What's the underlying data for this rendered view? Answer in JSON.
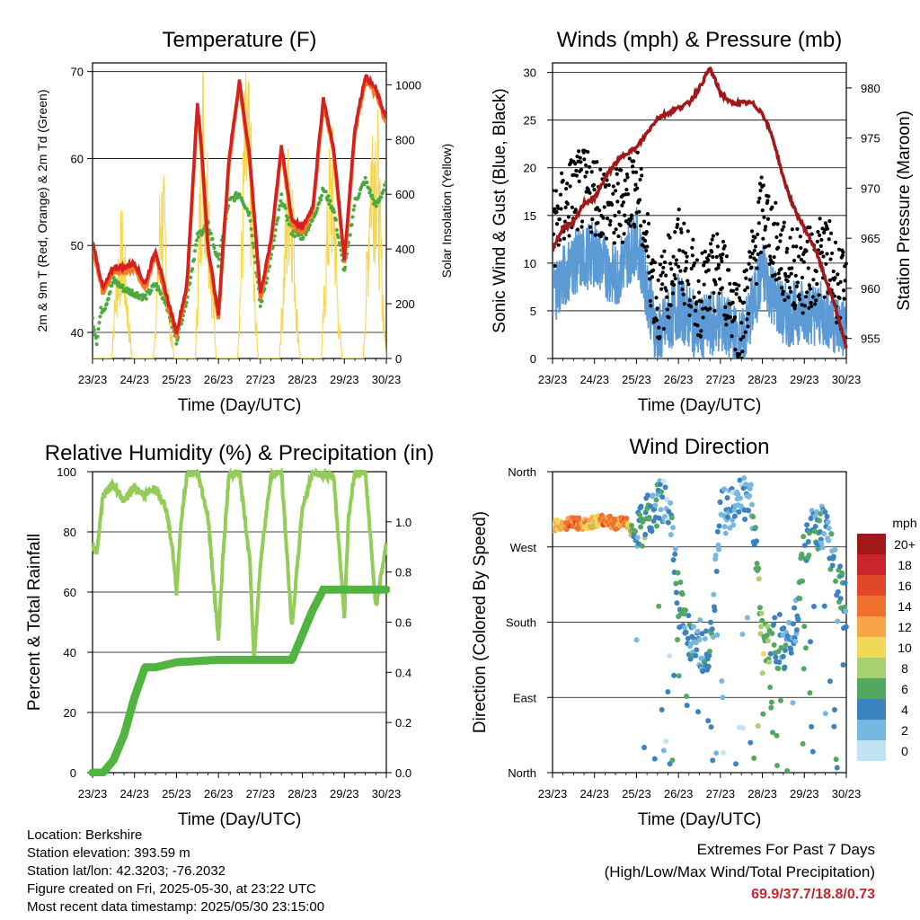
{
  "x_ticks": [
    "23/23",
    "24/23",
    "25/23",
    "26/23",
    "27/23",
    "28/23",
    "29/23",
    "30/23"
  ],
  "colors": {
    "temp2m": "#d42020",
    "temp9m": "#f07a22",
    "dewpoint": "#4aaa40",
    "solar": "#f7d64a",
    "gust": "#000000",
    "wind": "#5b9ad5",
    "pressure": "#a01818",
    "rh": "#94cc5a",
    "precip": "#52b440"
  },
  "chart_data": [
    {
      "id": "temperature",
      "type": "line",
      "title": "Temperature (F)",
      "xlabel": "Time (Day/UTC)",
      "ylabel": "2m & 9m T (Red, Orange) & 2m Td (Green)",
      "ylabel_right": "Solar Insolation (Yellow)",
      "xlim": [
        0,
        7
      ],
      "ylim": [
        37,
        71
      ],
      "ylim_right": [
        0,
        1080
      ],
      "yticks": [
        40,
        50,
        60,
        70
      ],
      "yticks_right": [
        0,
        200,
        400,
        600,
        800,
        1000
      ],
      "grid": true,
      "series": [
        {
          "name": "2m T",
          "x": [
            0,
            0.25,
            0.5,
            0.75,
            1.0,
            1.25,
            1.5,
            1.75,
            2.0,
            2.25,
            2.5,
            2.6,
            2.75,
            3.0,
            3.25,
            3.5,
            3.75,
            4.0,
            4.25,
            4.5,
            4.75,
            5.0,
            5.25,
            5.5,
            5.75,
            6.0,
            6.25,
            6.5,
            6.75,
            7.0
          ],
          "y": [
            50.5,
            45.0,
            47.5,
            47.5,
            48.0,
            45.5,
            49.5,
            44.5,
            40.0,
            45.5,
            66.5,
            61.0,
            50.0,
            42.0,
            60.0,
            69.0,
            60.0,
            44.5,
            50.5,
            61.5,
            53.0,
            52.0,
            54.5,
            67.0,
            61.0,
            48.5,
            63.5,
            69.5,
            68.0,
            64.5
          ]
        },
        {
          "name": "9m T",
          "x": [
            0,
            0.25,
            0.5,
            0.75,
            1.0,
            1.25,
            1.5,
            1.75,
            2.0,
            2.25,
            2.5,
            2.6,
            2.75,
            3.0,
            3.25,
            3.5,
            3.75,
            4.0,
            4.25,
            4.5,
            4.75,
            5.0,
            5.25,
            5.5,
            5.75,
            6.0,
            6.25,
            6.5,
            6.75,
            7.0
          ],
          "y": [
            50.0,
            44.5,
            47.0,
            47.0,
            47.5,
            45.0,
            49.0,
            44.0,
            39.5,
            45.0,
            66.0,
            60.5,
            49.5,
            41.5,
            59.5,
            68.5,
            59.5,
            44.0,
            50.0,
            61.0,
            52.5,
            51.5,
            54.0,
            66.5,
            60.5,
            48.0,
            63.0,
            69.0,
            67.5,
            64.0
          ]
        },
        {
          "name": "2m Td",
          "x": [
            0,
            0.1,
            0.2,
            0.3,
            0.5,
            0.75,
            1.0,
            1.25,
            1.5,
            1.75,
            2.0,
            2.25,
            2.5,
            2.75,
            3.0,
            3.25,
            3.5,
            3.75,
            4.0,
            4.25,
            4.5,
            4.75,
            5.0,
            5.25,
            5.5,
            5.75,
            6.0,
            6.25,
            6.5,
            6.75,
            7.0
          ],
          "y": [
            41.5,
            39.0,
            42.5,
            43.0,
            46.0,
            45.0,
            44.5,
            44.0,
            45.5,
            43.5,
            39.0,
            44.0,
            51.0,
            52.5,
            48.0,
            55.0,
            56.0,
            53.5,
            43.0,
            48.5,
            55.5,
            51.5,
            51.0,
            53.0,
            56.5,
            54.0,
            47.0,
            55.0,
            57.5,
            54.5,
            57.0
          ]
        },
        {
          "name": "Solar",
          "x": [
            0,
            0.45,
            0.55,
            0.62,
            0.7,
            0.78,
            0.85,
            0.95,
            1.45,
            1.55,
            1.62,
            1.7,
            1.78,
            1.85,
            1.95,
            2.45,
            2.55,
            2.62,
            2.7,
            2.78,
            2.85,
            2.95,
            3.45,
            3.55,
            3.62,
            3.7,
            3.78,
            3.85,
            3.95,
            4.45,
            4.55,
            4.62,
            4.7,
            4.78,
            4.85,
            4.95,
            5.45,
            5.55,
            5.62,
            5.7,
            5.78,
            5.85,
            5.95,
            6.45,
            6.55,
            6.62,
            6.7,
            6.78,
            6.85,
            6.95,
            7.0
          ],
          "y": [
            0,
            0,
            300,
            450,
            520,
            380,
            180,
            0,
            0,
            350,
            700,
            620,
            400,
            150,
            0,
            0,
            600,
            1100,
            900,
            700,
            350,
            0,
            0,
            450,
            950,
            1000,
            800,
            300,
            0,
            0,
            350,
            600,
            900,
            650,
            250,
            0,
            0,
            400,
            700,
            850,
            600,
            200,
            0,
            0,
            450,
            900,
            1000,
            950,
            600,
            150,
            0
          ]
        }
      ]
    },
    {
      "id": "winds",
      "type": "scatter",
      "title": "Winds (mph) & Pressure (mb)",
      "xlabel": "Time (Day/UTC)",
      "ylabel": "Sonic Wind & Gust (Blue, Black)",
      "ylabel_right": "Station Pressure (Maroon)",
      "xlim": [
        0,
        7
      ],
      "ylim": [
        0,
        31
      ],
      "ylim_right": [
        953,
        982.5
      ],
      "yticks": [
        0,
        5,
        10,
        15,
        20,
        25,
        30
      ],
      "yticks_right": [
        955,
        960,
        965,
        970,
        975,
        980
      ],
      "grid": true,
      "series": [
        {
          "name": "Gust",
          "x": [
            0,
            0.5,
            1.0,
            1.5,
            2.0,
            2.5,
            3.0,
            3.5,
            4.0,
            4.5,
            5.0,
            5.5,
            6.0,
            6.5,
            7.0
          ],
          "y": [
            13.0,
            17.0,
            17.0,
            15.0,
            18.0,
            5.0,
            11.0,
            6.0,
            9.0,
            3.0,
            15.0,
            9.5,
            8.5,
            10.5,
            5.5
          ]
        },
        {
          "name": "Wind",
          "x": [
            0,
            0.5,
            1.0,
            1.5,
            2.0,
            2.5,
            3.0,
            3.5,
            4.0,
            4.5,
            5.0,
            5.5,
            6.0,
            6.5,
            7.0
          ],
          "y": [
            7.0,
            10.0,
            11.0,
            8.5,
            12.5,
            2.0,
            5.5,
            3.0,
            4.0,
            1.5,
            9.0,
            4.5,
            5.0,
            4.5,
            3.0
          ]
        },
        {
          "name": "Pressure",
          "x": [
            0,
            0.25,
            0.5,
            0.75,
            1.0,
            1.25,
            1.5,
            1.75,
            2.0,
            2.25,
            2.5,
            2.75,
            3.0,
            3.25,
            3.5,
            3.75,
            4.0,
            4.25,
            4.5,
            4.75,
            5.0,
            5.25,
            5.5,
            5.75,
            6.0,
            6.25,
            6.5,
            6.75,
            7.0
          ],
          "y": [
            964.0,
            966.0,
            966.5,
            968.5,
            969.0,
            971.0,
            972.5,
            973.5,
            974.0,
            975.5,
            977.0,
            977.5,
            978.0,
            978.5,
            980.0,
            982.0,
            979.5,
            978.5,
            978.5,
            978.5,
            977.5,
            975.0,
            971.0,
            968.0,
            966.0,
            964.0,
            961.0,
            958.0,
            954.0
          ]
        }
      ]
    },
    {
      "id": "humidity",
      "type": "line",
      "title": "Relative Humidity (%) & Precipitation (in)",
      "xlabel": "Time (Day/UTC)",
      "ylabel": "Percent & Total Rainfall",
      "xlim": [
        0,
        7
      ],
      "ylim": [
        0,
        100
      ],
      "ylim_right": [
        0,
        1.2
      ],
      "yticks": [
        0,
        20,
        40,
        60,
        80,
        100
      ],
      "yticks_right": [
        0.0,
        0.2,
        0.4,
        0.6,
        0.8,
        1.0
      ],
      "grid": true,
      "series": [
        {
          "name": "RH",
          "x": [
            0,
            0.1,
            0.25,
            0.5,
            0.75,
            1.0,
            1.25,
            1.5,
            1.75,
            1.9,
            2.0,
            2.1,
            2.25,
            2.5,
            2.75,
            3.0,
            3.1,
            3.25,
            3.5,
            3.75,
            3.85,
            4.0,
            4.25,
            4.5,
            4.75,
            5.0,
            5.25,
            5.5,
            5.75,
            6.0,
            6.1,
            6.25,
            6.5,
            6.75,
            7.0
          ],
          "y": [
            75,
            73,
            92,
            96,
            90,
            95,
            92,
            95,
            88,
            75,
            60,
            82,
            99,
            100,
            85,
            44,
            70,
            99,
            100,
            70,
            37,
            70,
            99,
            100,
            48,
            88,
            100,
            99,
            98,
            52,
            85,
            100,
            100,
            55,
            76
          ]
        },
        {
          "name": "Precipitation",
          "x": [
            0,
            0.25,
            0.5,
            0.75,
            1.0,
            1.25,
            1.5,
            2.0,
            3.0,
            4.0,
            4.75,
            5.0,
            5.25,
            5.5,
            5.75,
            6.0,
            7.0
          ],
          "y": [
            0,
            0,
            0.05,
            0.15,
            0.3,
            0.42,
            0.42,
            0.44,
            0.45,
            0.45,
            0.45,
            0.55,
            0.65,
            0.73,
            0.73,
            0.73,
            0.73
          ]
        }
      ]
    },
    {
      "id": "direction",
      "type": "scatter",
      "title": "Wind Direction",
      "xlabel": "Time (Day/UTC)",
      "ylabel": "Direction (Colored By Speed)",
      "xlim": [
        0,
        7
      ],
      "ylim": [
        0,
        360
      ],
      "yticks": [
        "North",
        "East",
        "South",
        "West",
        "North"
      ],
      "colorbar": {
        "unit": "mph",
        "labels": [
          "20+",
          "18",
          "16",
          "14",
          "12",
          "10",
          "8",
          "6",
          "4",
          "2",
          "0"
        ],
        "colors": [
          "#a01818",
          "#c8262b",
          "#e04828",
          "#f07030",
          "#f8a448",
          "#f0d858",
          "#a8d070",
          "#52a860",
          "#3a82c0",
          "#78b8e0",
          "#c0e4f4"
        ]
      },
      "series": [
        {
          "name": "Direction",
          "x": [
            0.0,
            0.25,
            0.5,
            0.75,
            1.0,
            1.25,
            1.5,
            1.75,
            2.0,
            2.25,
            2.5,
            2.75,
            3.0,
            3.25,
            3.5,
            3.75,
            4.0,
            4.25,
            4.5,
            4.75,
            5.0,
            5.25,
            5.5,
            5.75,
            6.0,
            6.25,
            6.5,
            6.75,
            7.0
          ],
          "y": [
            295,
            297,
            300,
            296,
            300,
            302,
            298,
            300,
            280,
            310,
            320,
            330,
            210,
            160,
            145,
            150,
            310,
            315,
            330,
            325,
            155,
            150,
            150,
            160,
            270,
            295,
            290,
            240,
            200
          ],
          "speed": [
            10,
            12,
            14,
            12,
            10,
            14,
            12,
            14,
            3,
            6,
            4,
            2,
            6,
            4,
            3,
            5,
            2,
            3,
            2,
            3,
            8,
            5,
            4,
            3,
            6,
            4,
            3,
            5,
            4
          ]
        }
      ]
    }
  ],
  "info": {
    "location": "Location: Berkshire",
    "elevation": "Station elevation: 393.59 m",
    "latlon": "Station lat/lon: 42.3203; -76.2032",
    "created": "Figure created on Fri, 2025-05-30, at 23:22 UTC",
    "recent": "Most recent data timestamp: 2025/05/30 23:15:00"
  },
  "extremes": {
    "title": "Extremes For Past 7 Days",
    "subtitle": "(High/Low/Max Wind/Total Precipitation)",
    "values": "69.9/37.7/18.8/0.73"
  }
}
